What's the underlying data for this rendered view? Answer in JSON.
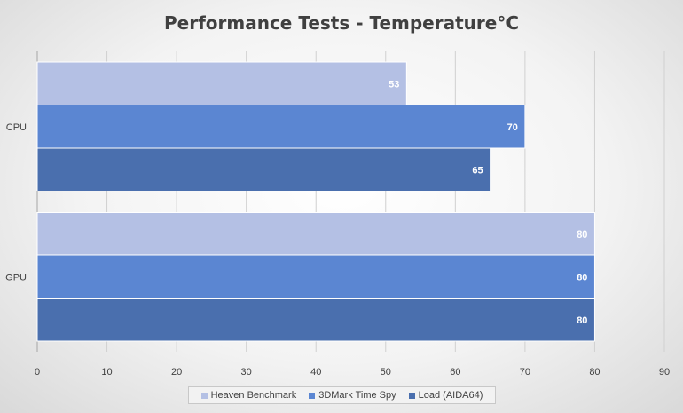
{
  "chart_data": {
    "type": "bar",
    "orientation": "horizontal",
    "title": "Performance Tests - Temperature°C",
    "categories": [
      "CPU",
      "GPU"
    ],
    "series": [
      {
        "name": "Heaven Benchmark",
        "values": [
          53,
          80
        ],
        "color": "#b4c0e4"
      },
      {
        "name": "3DMark Time Spy",
        "values": [
          70,
          80
        ],
        "color": "#5b86d2"
      },
      {
        "name": "Load (AIDA64)",
        "values": [
          65,
          80
        ],
        "color": "#4a6fae"
      }
    ],
    "xlim": [
      0,
      90
    ],
    "xticks": [
      0,
      10,
      20,
      30,
      40,
      50,
      60,
      70,
      80,
      90
    ],
    "grid": true,
    "data_labels": true,
    "legend_position": "bottom"
  }
}
